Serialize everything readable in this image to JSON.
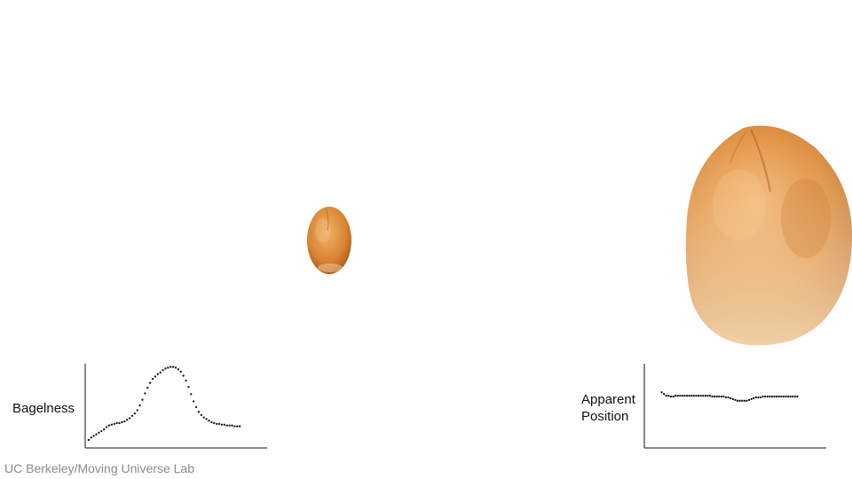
{
  "credit": "UC Berkeley/Moving Universe Lab",
  "colors": {
    "bread_light": "#f2b06a",
    "bread_mid": "#d98534",
    "bread_dark": "#b0561a",
    "bread_pale": "#f6dcb4",
    "axis": "#111111",
    "points": "#111111",
    "credit": "#8a8a8a"
  },
  "images": {
    "small_bun": "bread-roll-small",
    "large_bun": "bread-roll-large"
  },
  "chart_data": [
    {
      "type": "scatter",
      "ylabel": "Bagelness",
      "xlabel": "",
      "title": "",
      "x": [
        1,
        2,
        3,
        4,
        5,
        6,
        7,
        8,
        9,
        10,
        11,
        12,
        13,
        14,
        15,
        16,
        17,
        18,
        19,
        20,
        21,
        22,
        23,
        24,
        25,
        26,
        27,
        28,
        29,
        30,
        31,
        32,
        33,
        34,
        35,
        36,
        37,
        38,
        39,
        40,
        41,
        42,
        43,
        44,
        45,
        46,
        47,
        48,
        49,
        50,
        51,
        52,
        53,
        54,
        55,
        56,
        57,
        58,
        59,
        60
      ],
      "y": [
        0.1,
        0.13,
        0.15,
        0.17,
        0.19,
        0.21,
        0.23,
        0.26,
        0.28,
        0.29,
        0.3,
        0.31,
        0.31,
        0.32,
        0.33,
        0.35,
        0.37,
        0.4,
        0.43,
        0.47,
        0.53,
        0.6,
        0.68,
        0.75,
        0.81,
        0.86,
        0.89,
        0.92,
        0.94,
        0.97,
        0.99,
        1.0,
        1.01,
        1.01,
        1.0,
        0.98,
        0.95,
        0.9,
        0.84,
        0.76,
        0.67,
        0.58,
        0.51,
        0.45,
        0.41,
        0.38,
        0.36,
        0.34,
        0.32,
        0.31,
        0.3,
        0.3,
        0.29,
        0.29,
        0.28,
        0.28,
        0.28,
        0.27,
        0.27,
        0.27
      ],
      "xlim": [
        0,
        61
      ],
      "ylim": [
        0,
        1.05
      ],
      "grid": false
    },
    {
      "type": "scatter",
      "ylabel": "Apparent\nPosition",
      "xlabel": "",
      "title": "",
      "x": [
        1,
        2,
        3,
        4,
        5,
        6,
        7,
        8,
        9,
        10,
        11,
        12,
        13,
        14,
        15,
        16,
        17,
        18,
        19,
        20,
        21,
        22,
        23,
        24,
        25,
        26,
        27,
        28,
        29,
        30,
        31,
        32,
        33,
        34,
        35,
        36,
        37,
        38,
        39,
        40,
        41,
        42,
        43,
        44,
        45,
        46,
        47,
        48,
        49,
        50,
        51,
        52,
        53,
        54,
        55,
        56,
        57,
        58,
        59,
        60
      ],
      "y": [
        0.66,
        0.64,
        0.62,
        0.62,
        0.61,
        0.61,
        0.62,
        0.62,
        0.62,
        0.62,
        0.62,
        0.62,
        0.62,
        0.62,
        0.62,
        0.62,
        0.62,
        0.62,
        0.62,
        0.62,
        0.62,
        0.62,
        0.61,
        0.61,
        0.61,
        0.61,
        0.61,
        0.61,
        0.6,
        0.6,
        0.59,
        0.58,
        0.57,
        0.56,
        0.56,
        0.56,
        0.56,
        0.56,
        0.57,
        0.58,
        0.59,
        0.6,
        0.6,
        0.6,
        0.61,
        0.61,
        0.61,
        0.61,
        0.61,
        0.61,
        0.61,
        0.61,
        0.61,
        0.61,
        0.61,
        0.61,
        0.61,
        0.61,
        0.61,
        0.61
      ],
      "xlim": [
        0,
        61
      ],
      "ylim": [
        0,
        1
      ],
      "grid": false
    }
  ]
}
